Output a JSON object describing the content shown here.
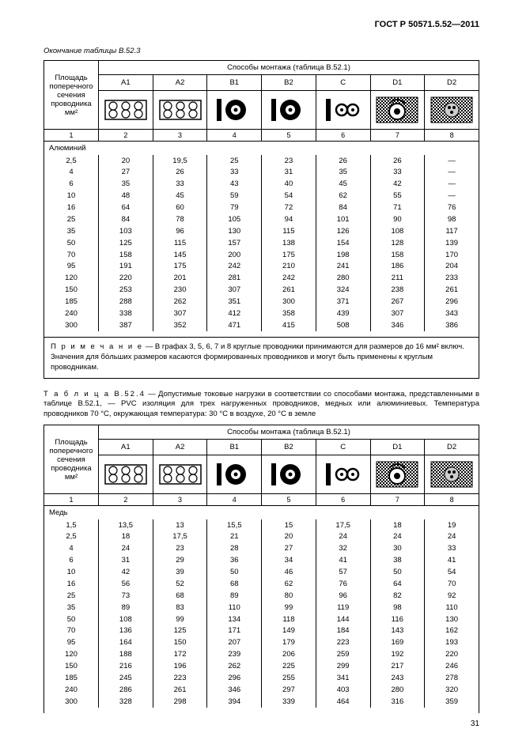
{
  "doc_code": "ГОСТ Р 50571.5.52—2011",
  "page_number": "31",
  "table1": {
    "caption": "Окончание таблицы В.52.3",
    "methods_title": "Способы монтажа (таблица В.52.1)",
    "col_label": "Площадь поперечного сечения проводника мм²",
    "methods": [
      "A1",
      "A2",
      "B1",
      "B2",
      "C",
      "D1",
      "D2"
    ],
    "num_cols": [
      "1",
      "2",
      "3",
      "4",
      "5",
      "6",
      "7",
      "8"
    ],
    "material": "Алюминий",
    "rows": [
      {
        "s": "2,5",
        "v": [
          "20",
          "19,5",
          "25",
          "23",
          "26",
          "26",
          "—"
        ]
      },
      {
        "s": "4",
        "v": [
          "27",
          "26",
          "33",
          "31",
          "35",
          "33",
          "—"
        ]
      },
      {
        "s": "6",
        "v": [
          "35",
          "33",
          "43",
          "40",
          "45",
          "42",
          "—"
        ]
      },
      {
        "s": "10",
        "v": [
          "48",
          "45",
          "59",
          "54",
          "62",
          "55",
          "—"
        ]
      },
      {
        "s": "16",
        "v": [
          "64",
          "60",
          "79",
          "72",
          "84",
          "71",
          "76"
        ]
      },
      {
        "s": "25",
        "v": [
          "84",
          "78",
          "105",
          "94",
          "101",
          "90",
          "98"
        ]
      },
      {
        "s": "35",
        "v": [
          "103",
          "96",
          "130",
          "115",
          "126",
          "108",
          "117"
        ]
      },
      {
        "s": "50",
        "v": [
          "125",
          "115",
          "157",
          "138",
          "154",
          "128",
          "139"
        ]
      },
      {
        "s": "70",
        "v": [
          "158",
          "145",
          "200",
          "175",
          "198",
          "158",
          "170"
        ]
      },
      {
        "s": "95",
        "v": [
          "191",
          "175",
          "242",
          "210",
          "241",
          "186",
          "204"
        ]
      },
      {
        "s": "120",
        "v": [
          "220",
          "201",
          "281",
          "242",
          "280",
          "211",
          "233"
        ]
      },
      {
        "s": "150",
        "v": [
          "253",
          "230",
          "307",
          "261",
          "324",
          "238",
          "261"
        ]
      },
      {
        "s": "185",
        "v": [
          "288",
          "262",
          "351",
          "300",
          "371",
          "267",
          "296"
        ]
      },
      {
        "s": "240",
        "v": [
          "338",
          "307",
          "412",
          "358",
          "439",
          "307",
          "343"
        ]
      },
      {
        "s": "300",
        "v": [
          "387",
          "352",
          "471",
          "415",
          "508",
          "346",
          "386"
        ]
      }
    ],
    "note_label": "П р и м е ч а н и е",
    "note_text": " — В графах 3, 5, 6, 7 и 8 круглые проводники принимаются для размеров до 16 мм² включ. Значения для бо́льших размеров касаются формированных проводников и могут быть применены к круглым проводникам."
  },
  "table2": {
    "pre_label": "Т а б л и ц а  В.52.4",
    "pre_text": " — Допустимые токовые нагрузки в соответствии со способами монтажа, представленными в таблице В.52.1, — PVC изоляция для трех нагруженных проводников, медных или алюминиевых. Температура проводников 70 °С, окружающая температура: 30 °С в воздухе, 20 °С в земле",
    "methods_title": "Способы монтажа (таблица В.52.1)",
    "col_label": "Площадь поперечного сечения проводника мм²",
    "methods": [
      "A1",
      "A2",
      "B1",
      "B2",
      "C",
      "D1",
      "D2"
    ],
    "num_cols": [
      "1",
      "2",
      "3",
      "4",
      "5",
      "6",
      "7",
      "8"
    ],
    "material": "Медь",
    "rows": [
      {
        "s": "1,5",
        "v": [
          "13,5",
          "13",
          "15,5",
          "15",
          "17,5",
          "18",
          "19"
        ]
      },
      {
        "s": "2,5",
        "v": [
          "18",
          "17,5",
          "21",
          "20",
          "24",
          "24",
          "24"
        ]
      },
      {
        "s": "4",
        "v": [
          "24",
          "23",
          "28",
          "27",
          "32",
          "30",
          "33"
        ]
      },
      {
        "s": "6",
        "v": [
          "31",
          "29",
          "36",
          "34",
          "41",
          "38",
          "41"
        ]
      },
      {
        "s": "10",
        "v": [
          "42",
          "39",
          "50",
          "46",
          "57",
          "50",
          "54"
        ]
      },
      {
        "s": "16",
        "v": [
          "56",
          "52",
          "68",
          "62",
          "76",
          "64",
          "70"
        ]
      },
      {
        "s": "25",
        "v": [
          "73",
          "68",
          "89",
          "80",
          "96",
          "82",
          "92"
        ]
      },
      {
        "s": "35",
        "v": [
          "89",
          "83",
          "110",
          "99",
          "119",
          "98",
          "110"
        ]
      },
      {
        "s": "50",
        "v": [
          "108",
          "99",
          "134",
          "118",
          "144",
          "116",
          "130"
        ]
      },
      {
        "s": "70",
        "v": [
          "136",
          "125",
          "171",
          "149",
          "184",
          "143",
          "162"
        ]
      },
      {
        "s": "95",
        "v": [
          "164",
          "150",
          "207",
          "179",
          "223",
          "169",
          "193"
        ]
      },
      {
        "s": "120",
        "v": [
          "188",
          "172",
          "239",
          "206",
          "259",
          "192",
          "220"
        ]
      },
      {
        "s": "150",
        "v": [
          "216",
          "196",
          "262",
          "225",
          "299",
          "217",
          "246"
        ]
      },
      {
        "s": "185",
        "v": [
          "245",
          "223",
          "296",
          "255",
          "341",
          "243",
          "278"
        ]
      },
      {
        "s": "240",
        "v": [
          "286",
          "261",
          "346",
          "297",
          "403",
          "280",
          "320"
        ]
      },
      {
        "s": "300",
        "v": [
          "328",
          "298",
          "394",
          "339",
          "464",
          "316",
          "359"
        ]
      }
    ]
  },
  "icons": {
    "A": "coils",
    "B": "pipe-circle",
    "C": "two-circles",
    "D1": "hatched-cable",
    "D2": "hatched-dots"
  }
}
